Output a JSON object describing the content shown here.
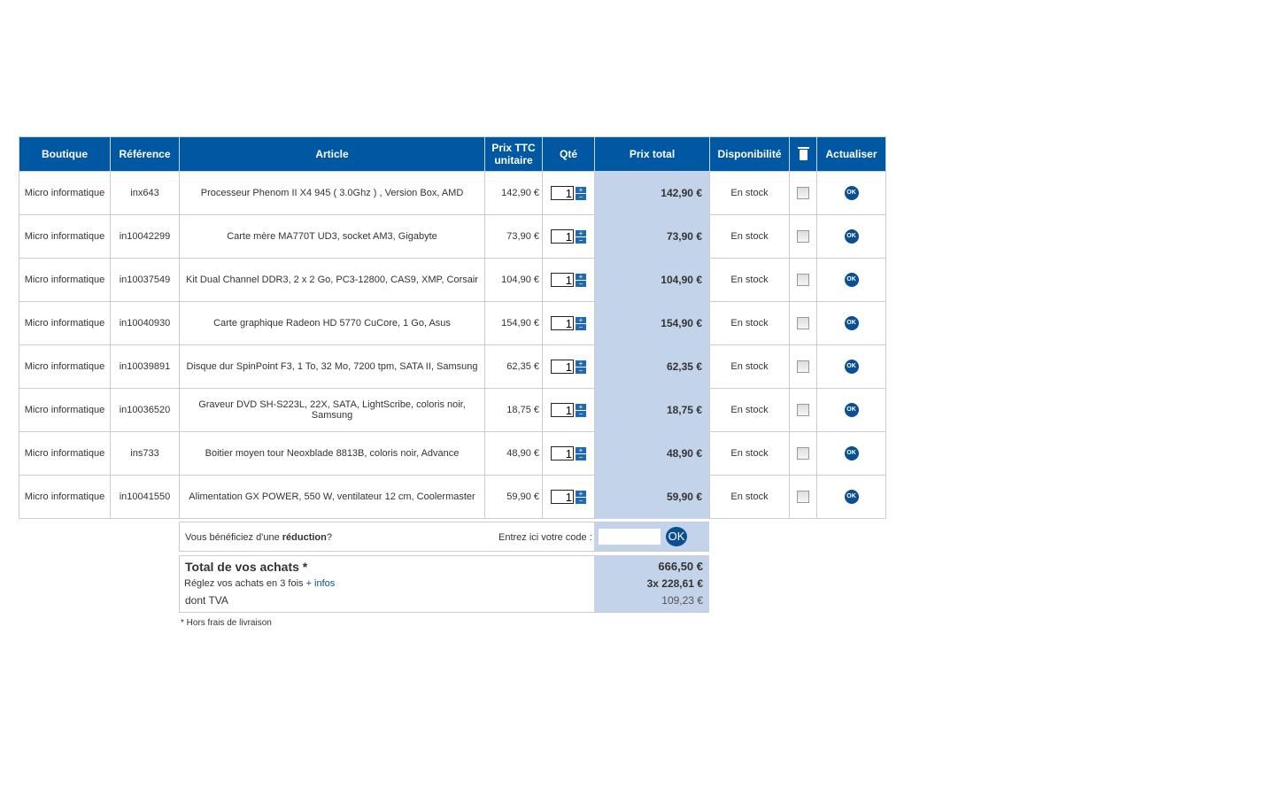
{
  "headers": {
    "boutique": "Boutique",
    "reference": "Référence",
    "article": "Article",
    "prix_unit_1": "Prix TTC",
    "prix_unit_2": "unitaire",
    "qte": "Qté",
    "prix_total": "Prix total",
    "dispo": "Disponibilité",
    "delete_icon": "trash-icon",
    "actualiser": "Actualiser"
  },
  "rows": [
    {
      "boutique": "Micro informatique",
      "reference": "inx643",
      "article": "Processeur Phenom II X4 945 ( 3.0Ghz ) , Version Box, AMD",
      "unit": "142,90 €",
      "qty": "1",
      "total": "142,90 €",
      "dispo": "En stock"
    },
    {
      "boutique": "Micro informatique",
      "reference": "in10042299",
      "article": "Carte mère MA770T UD3, socket AM3, Gigabyte",
      "unit": "73,90 €",
      "qty": "1",
      "total": "73,90 €",
      "dispo": "En stock"
    },
    {
      "boutique": "Micro informatique",
      "reference": "in10037549",
      "article": "Kit Dual Channel DDR3, 2 x 2 Go, PC3-12800, CAS9, XMP, Corsair",
      "unit": "104,90 €",
      "qty": "1",
      "total": "104,90 €",
      "dispo": "En stock"
    },
    {
      "boutique": "Micro informatique",
      "reference": "in10040930",
      "article": "Carte graphique Radeon HD 5770 CuCore, 1 Go, Asus",
      "unit": "154,90 €",
      "qty": "1",
      "total": "154,90 €",
      "dispo": "En stock"
    },
    {
      "boutique": "Micro informatique",
      "reference": "in10039891",
      "article": "Disque dur SpinPoint F3, 1 To, 32 Mo, 7200 tpm, SATA II, Samsung",
      "unit": "62,35 €",
      "qty": "1",
      "total": "62,35 €",
      "dispo": "En stock"
    },
    {
      "boutique": "Micro informatique",
      "reference": "in10036520",
      "article": "Graveur DVD SH-S223L, 22X, SATA, LightScribe, coloris noir, Samsung",
      "unit": "18,75 €",
      "qty": "1",
      "total": "18,75 €",
      "dispo": "En stock"
    },
    {
      "boutique": "Micro informatique",
      "reference": "ins733",
      "article": "Boitier moyen tour Neoxblade 8813B, coloris noir, Advance",
      "unit": "48,90 €",
      "qty": "1",
      "total": "48,90 €",
      "dispo": "En stock"
    },
    {
      "boutique": "Micro informatique",
      "reference": "in10041550",
      "article": "Alimentation GX POWER, 550 W, ventilateur 12 cm, Coolermaster",
      "unit": "59,90 €",
      "qty": "1",
      "total": "59,90 €",
      "dispo": "En stock"
    }
  ],
  "row_ok_label": "OK",
  "discount": {
    "prefix": "Vous bénéficiez d'une ",
    "bold": "réduction",
    "suffix": "?",
    "code_label": "Entrez ici votre code :",
    "code_value": "",
    "ok_label": "OK"
  },
  "totals": {
    "title": "Total de vos achats *",
    "total": "666,50 €",
    "installments_text": "Réglez vos achats en 3 fois ",
    "infos_link": "+ infos",
    "installments_value": "3x  228,61 €",
    "tva_label": "dont TVA",
    "tva_value": "109,23 €"
  },
  "footnote": "* Hors frais de livraison",
  "colors": {
    "header": "#0057a2",
    "total_column": "#c3d3ea",
    "ok_button": "#0a4f93"
  }
}
